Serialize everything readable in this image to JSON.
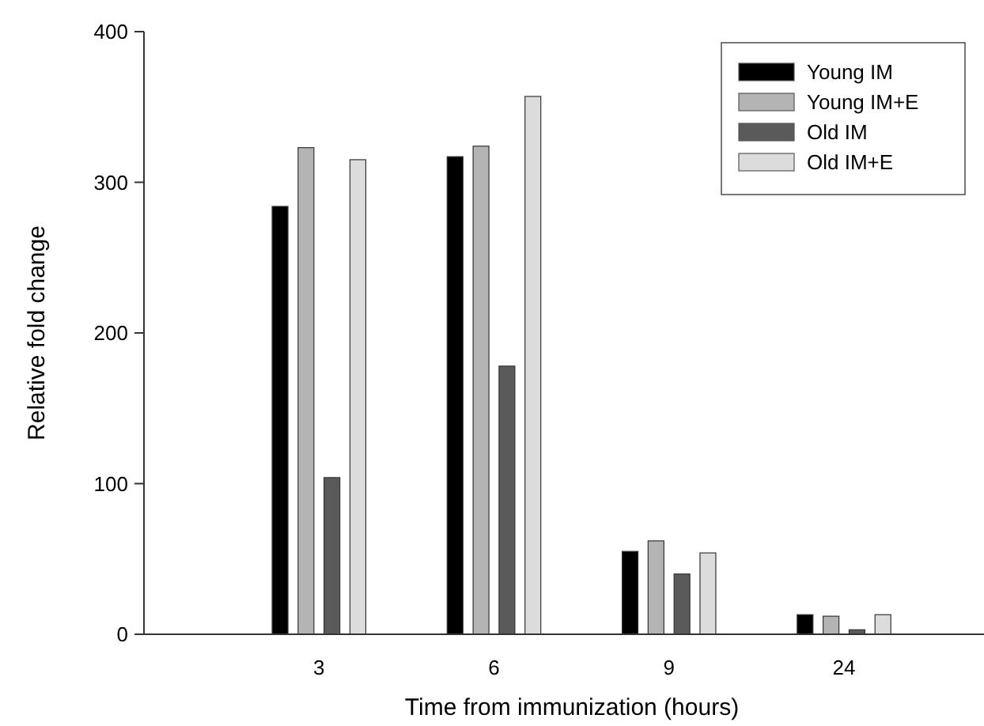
{
  "chart_data": {
    "type": "bar",
    "xlabel": "Time from immunization (hours)",
    "ylabel": "Relative fold change",
    "categories": [
      "3",
      "6",
      "9",
      "24"
    ],
    "series": [
      {
        "name": "Young IM",
        "color": "#000000",
        "values": [
          284,
          317,
          55,
          13
        ]
      },
      {
        "name": "Young IM+E",
        "color": "#b4b4b4",
        "values": [
          323,
          324,
          62,
          12
        ]
      },
      {
        "name": "Old IM",
        "color": "#5a5a5a",
        "values": [
          104,
          178,
          40,
          3
        ]
      },
      {
        "name": "Old IM+E",
        "color": "#dcdcdc",
        "values": [
          315,
          357,
          54,
          13
        ]
      }
    ],
    "ylim": [
      0,
      400
    ],
    "yticks": [
      0,
      100,
      200,
      300,
      400
    ],
    "grid": false,
    "legend": "top right"
  }
}
